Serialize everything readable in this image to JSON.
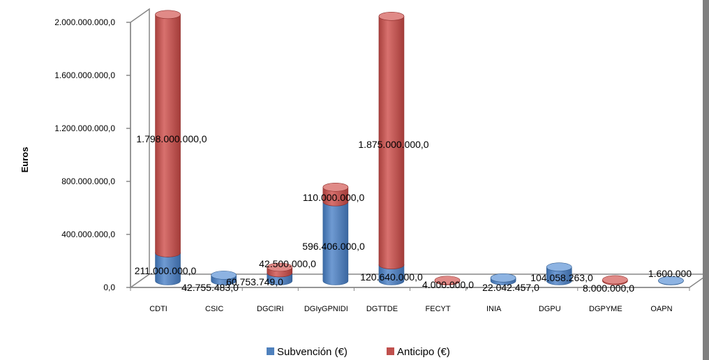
{
  "chart_data": {
    "type": "bar",
    "stacked": true,
    "style": "3d-cylinder",
    "categories": [
      "CDTI",
      "CSIC",
      "DGCIRI",
      "DGIyGPNIDI",
      "DGTTDE",
      "FECYT",
      "INIA",
      "DGPU",
      "DGPYME",
      "OAPN"
    ],
    "series": [
      {
        "name": "Subvención (€)",
        "color": "#4f81bd",
        "values": [
          211000000,
          42755483,
          60753749,
          596406000,
          120640000,
          0,
          22042457,
          104058263,
          0,
          1600000
        ],
        "labels": [
          "211.000.000,0",
          "42.755.483,0",
          "60.753.749,0",
          "596.406.000,0",
          "120.640.000,0",
          "",
          "22.042.457,0",
          "104.058.263,0",
          "",
          "1.600.000"
        ]
      },
      {
        "name": "Anticipo (€)",
        "color": "#c0504d",
        "values": [
          1798000000,
          0,
          42500000,
          110000000,
          1875000000,
          4000000,
          0,
          0,
          8000000,
          0
        ],
        "labels": [
          "1.798.000.000,0",
          "",
          "42.500.000,0",
          "110.000.000,0",
          "1.875.000.000,0",
          "4.000.000,0",
          "",
          "",
          "8.000.000,0",
          ""
        ]
      }
    ],
    "ylabel": "Euros",
    "xlabel": "",
    "ylim": [
      0,
      2000000000
    ],
    "yticks": [
      0,
      400000000,
      800000000,
      1200000000,
      1600000000,
      2000000000
    ],
    "ytick_labels": [
      "0,0",
      "400.000.000,0",
      "800.000.000,0",
      "1.200.000.000,0",
      "1.600.000.000,0",
      "2.000.000.000,0"
    ],
    "legend_position": "bottom",
    "grid": false
  }
}
